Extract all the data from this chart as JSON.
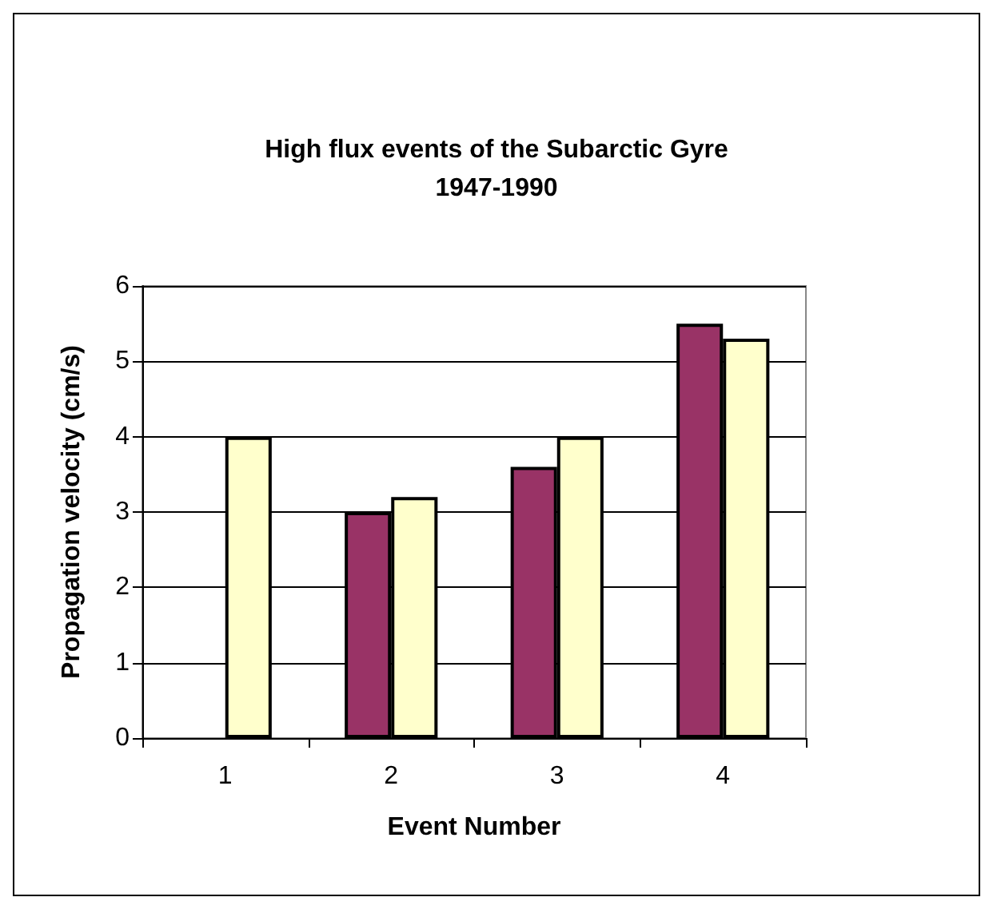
{
  "chart_data": {
    "type": "bar",
    "title": "High flux events of the Subarctic Gyre\n1947-1990",
    "xlabel": "Event Number",
    "ylabel": "Propagation velocity (cm/s)",
    "categories": [
      "1",
      "2",
      "3",
      "4"
    ],
    "series": [
      {
        "color": "#993366",
        "values": [
          null,
          3.0,
          3.6,
          5.5
        ]
      },
      {
        "color": "#ffffcc",
        "values": [
          4.0,
          3.2,
          4.0,
          5.3
        ]
      }
    ],
    "ylim": [
      0,
      6
    ],
    "yticks": [
      0,
      1,
      2,
      3,
      4,
      5,
      6
    ],
    "grid": "y"
  }
}
